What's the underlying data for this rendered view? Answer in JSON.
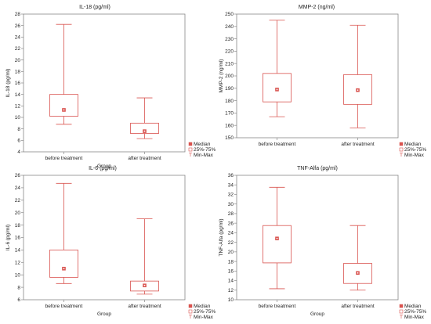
{
  "chart_data": [
    {
      "type": "boxplot",
      "title": "IL-18  (pg/ml)",
      "xlabel": "Group",
      "ylabel": "IL-18  (pg/ml)",
      "categories": [
        "before treatment",
        "after treatment"
      ],
      "ylim": [
        4,
        28
      ],
      "yticks": [
        4,
        6,
        8,
        10,
        12,
        14,
        16,
        18,
        20,
        22,
        24,
        26,
        28
      ],
      "boxes": [
        {
          "min": 8.8,
          "q1": 10.2,
          "median": 11.3,
          "q3": 14.0,
          "max": 26.2
        },
        {
          "min": 6.3,
          "q1": 7.2,
          "median": 7.6,
          "q3": 9.0,
          "max": 13.4
        }
      ],
      "legend": [
        "Median",
        "25%-75%",
        "Min-Max"
      ]
    },
    {
      "type": "boxplot",
      "title": "MMP-2  (ng/ml)",
      "xlabel": "",
      "ylabel": "MMP-2  (ng/ml)",
      "categories": [
        "before treatment",
        "after treatment"
      ],
      "ylim": [
        150,
        250
      ],
      "yticks": [
        150,
        160,
        170,
        180,
        190,
        200,
        210,
        220,
        230,
        240,
        250
      ],
      "boxes": [
        {
          "min": 167,
          "q1": 179,
          "median": 189,
          "q3": 202,
          "max": 245
        },
        {
          "min": 158,
          "q1": 177,
          "median": 188.5,
          "q3": 201,
          "max": 241
        }
      ],
      "legend": [
        "Median",
        "25%-75%",
        "Min-Max"
      ]
    },
    {
      "type": "boxplot",
      "title": "IL-6  (pg/ml)",
      "xlabel": "Group",
      "ylabel": "IL-6  (pg/ml)",
      "categories": [
        "before treatment",
        "after treatment"
      ],
      "ylim": [
        6,
        26
      ],
      "yticks": [
        6,
        8,
        10,
        12,
        14,
        16,
        18,
        20,
        22,
        24,
        26
      ],
      "boxes": [
        {
          "min": 8.6,
          "q1": 9.6,
          "median": 11.0,
          "q3": 14.0,
          "max": 24.7
        },
        {
          "min": 6.9,
          "q1": 7.4,
          "median": 8.3,
          "q3": 9.0,
          "max": 19.0
        }
      ],
      "legend": [
        "Median",
        "25%-75%",
        "Min-Max"
      ]
    },
    {
      "type": "boxplot",
      "title": "TNF-Alfa (pg/ml)",
      "xlabel": "Group",
      "ylabel": "TNF-Alfa (pg/ml)",
      "categories": [
        "before treatment",
        "after treatment"
      ],
      "ylim": [
        10,
        36
      ],
      "yticks": [
        10,
        12,
        14,
        16,
        18,
        20,
        22,
        24,
        26,
        28,
        30,
        32,
        34,
        36
      ],
      "boxes": [
        {
          "min": 12.3,
          "q1": 17.7,
          "median": 22.8,
          "q3": 25.5,
          "max": 33.5
        },
        {
          "min": 12.0,
          "q1": 13.4,
          "median": 15.6,
          "q3": 17.6,
          "max": 25.5
        }
      ],
      "legend": [
        "Median",
        "25%-75%",
        "Min-Max"
      ]
    }
  ],
  "colors": {
    "box": "#d9534f",
    "marker_fill": "#d9534f",
    "axis": "#888888"
  }
}
